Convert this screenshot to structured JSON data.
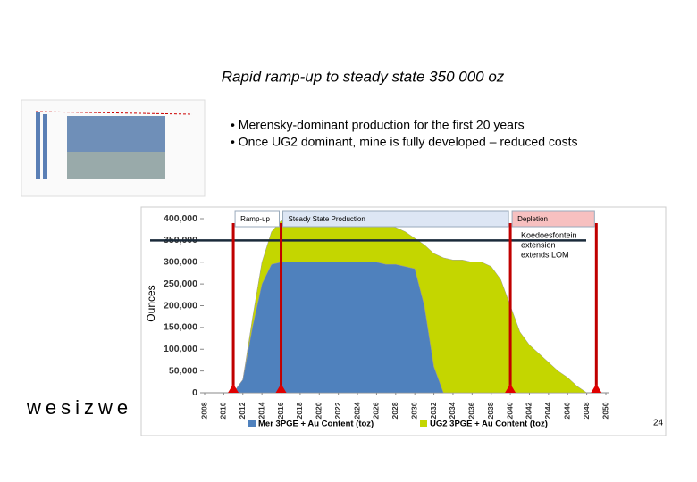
{
  "title": "Rapid ramp-up to steady state 350 000 oz",
  "bullets": [
    "• Merensky-dominant production for the first 20 years",
    "• Once UG2 dominant, mine is fully developed – reduced costs"
  ],
  "logo": "wesizwe",
  "page_number": "24",
  "chart_data": {
    "type": "area",
    "stacked": true,
    "x": [
      2011,
      2012,
      2013,
      2014,
      2015,
      2016,
      2017,
      2018,
      2019,
      2020,
      2021,
      2022,
      2023,
      2024,
      2025,
      2026,
      2027,
      2028,
      2029,
      2030,
      2031,
      2032,
      2033,
      2034,
      2035,
      2036,
      2037,
      2038,
      2039,
      2040,
      2041,
      2042,
      2043,
      2044,
      2045,
      2046,
      2047,
      2048
    ],
    "series": [
      {
        "name": "Mer 3PGE + Au Content (toz)",
        "color": "#4f81bd",
        "values": [
          0,
          30000,
          150000,
          250000,
          295000,
          300000,
          300000,
          300000,
          300000,
          300000,
          300000,
          300000,
          300000,
          300000,
          300000,
          300000,
          295000,
          295000,
          290000,
          285000,
          200000,
          60000,
          0,
          0,
          0,
          0,
          0,
          0,
          0,
          0,
          0,
          0,
          0,
          0,
          0,
          0,
          0,
          0
        ]
      },
      {
        "name": "UG2 3PGE + Au Content (toz)",
        "color": "#c4d600",
        "values": [
          0,
          0,
          20000,
          50000,
          75000,
          95000,
          95000,
          90000,
          90000,
          90000,
          90000,
          90000,
          90000,
          90000,
          90000,
          90000,
          90000,
          85000,
          80000,
          70000,
          140000,
          260000,
          310000,
          305000,
          305000,
          300000,
          300000,
          290000,
          260000,
          200000,
          140000,
          110000,
          90000,
          70000,
          50000,
          35000,
          15000,
          0
        ]
      }
    ],
    "xlim": [
      2008,
      2050
    ],
    "xticks": [
      2008,
      2010,
      2012,
      2014,
      2016,
      2018,
      2020,
      2022,
      2024,
      2026,
      2028,
      2030,
      2032,
      2034,
      2036,
      2038,
      2040,
      2042,
      2044,
      2046,
      2048,
      2050
    ],
    "ylim": [
      0,
      400000
    ],
    "yticks": [
      0,
      {
        "value": 50000,
        "label": "50,000"
      },
      {
        "value": 100000,
        "label": "100,000"
      },
      {
        "value": 150000,
        "label": "150,000"
      },
      {
        "value": 200000,
        "label": "200,000"
      },
      {
        "value": 250000,
        "label": "250,000"
      },
      {
        "value": 300000,
        "label": "300,000"
      },
      {
        "value": 350000,
        "label": "350,000"
      },
      {
        "value": 400000,
        "label": "400,000"
      }
    ],
    "y_label": "Ounces",
    "phase_lines": [
      2011,
      2016,
      2040,
      2049
    ],
    "phase_labels": [
      "Ramp-up",
      "Steady State Production",
      "Depletion"
    ],
    "target_line": 350000,
    "annotation": [
      "Koedoesfontein",
      "extension",
      "extends LOM"
    ]
  }
}
